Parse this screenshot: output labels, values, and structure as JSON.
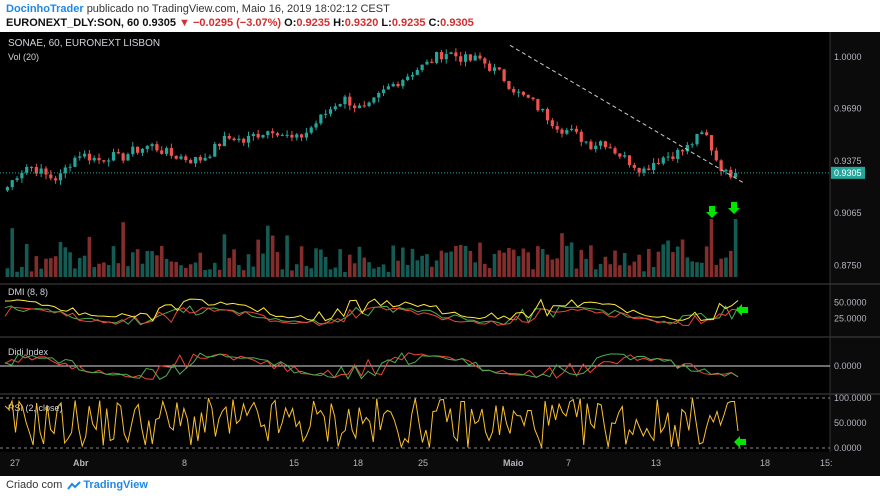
{
  "header": {
    "author": "DocinhoTrader",
    "published_text": "publicado no TradingView.com, Maio 16, 2019 18:02:12 CEST",
    "symbol": "EURONEXT_DLY:SON, 60",
    "last": "0.9305",
    "change": "−0.0295 (−3.07%)",
    "open_label": "O:",
    "open": "0.9235",
    "high_label": "H:",
    "high": "0.9320",
    "low_label": "L:",
    "low": "0.9235",
    "close_label": "C:",
    "close": "0.9305"
  },
  "panes": {
    "main_title": "SONAE, 60, EURONEXT LISBON",
    "volume_label": "Vol (20)",
    "dmi_label": "DMI (8, 8)",
    "didi_label": "Didi Index",
    "rsi_label": "RSI (2, close)"
  },
  "colors": {
    "background": "#000000",
    "up": "#26a69a",
    "down": "#ef5350",
    "dmi_plus": "#4caf50",
    "dmi_minus": "#f44336",
    "adx": "#ffeb3b",
    "rsi": "#fbc02d",
    "price_tag": "#26a69a",
    "arrow": "#00e600"
  },
  "footer": {
    "created_with": "Criado com",
    "brand": "TradingView"
  },
  "chart_data": {
    "type": "candlestick",
    "price_axis_ticks": [
      "1.0000",
      "0.9690",
      "0.9375",
      "0.9065",
      "0.8750"
    ],
    "last_price": "0.9305",
    "dmi_axis_ticks": [
      "50.0000",
      "25.0000"
    ],
    "didi_axis_ticks": [
      "0.0000"
    ],
    "rsi_axis_ticks": [
      "100.0000",
      "50.0000",
      "0.0000"
    ],
    "x_ticks": [
      "27",
      "Abr",
      "8",
      "15",
      "18",
      "25",
      "Maio",
      "7",
      "13",
      "18",
      "15:"
    ],
    "price_path": [
      0.922,
      0.93,
      0.935,
      0.932,
      0.928,
      0.927,
      0.936,
      0.942,
      0.94,
      0.938,
      0.941,
      0.939,
      0.943,
      0.945,
      0.947,
      0.944,
      0.941,
      0.94,
      0.938,
      0.939,
      0.944,
      0.95,
      0.952,
      0.949,
      0.953,
      0.955,
      0.957,
      0.953,
      0.95,
      0.954,
      0.96,
      0.966,
      0.972,
      0.975,
      0.97,
      0.968,
      0.975,
      0.981,
      0.985,
      0.989,
      0.993,
      0.996,
      1.001,
      1.003,
      1.0,
      0.998,
      0.999,
      0.994,
      0.99,
      0.983,
      0.977,
      0.974,
      0.968,
      0.962,
      0.957,
      0.955,
      0.951,
      0.947,
      0.95,
      0.945,
      0.94,
      0.936,
      0.932,
      0.937,
      0.94,
      0.942,
      0.944,
      0.95,
      0.955,
      0.94,
      0.93,
      0.9305
    ]
  }
}
